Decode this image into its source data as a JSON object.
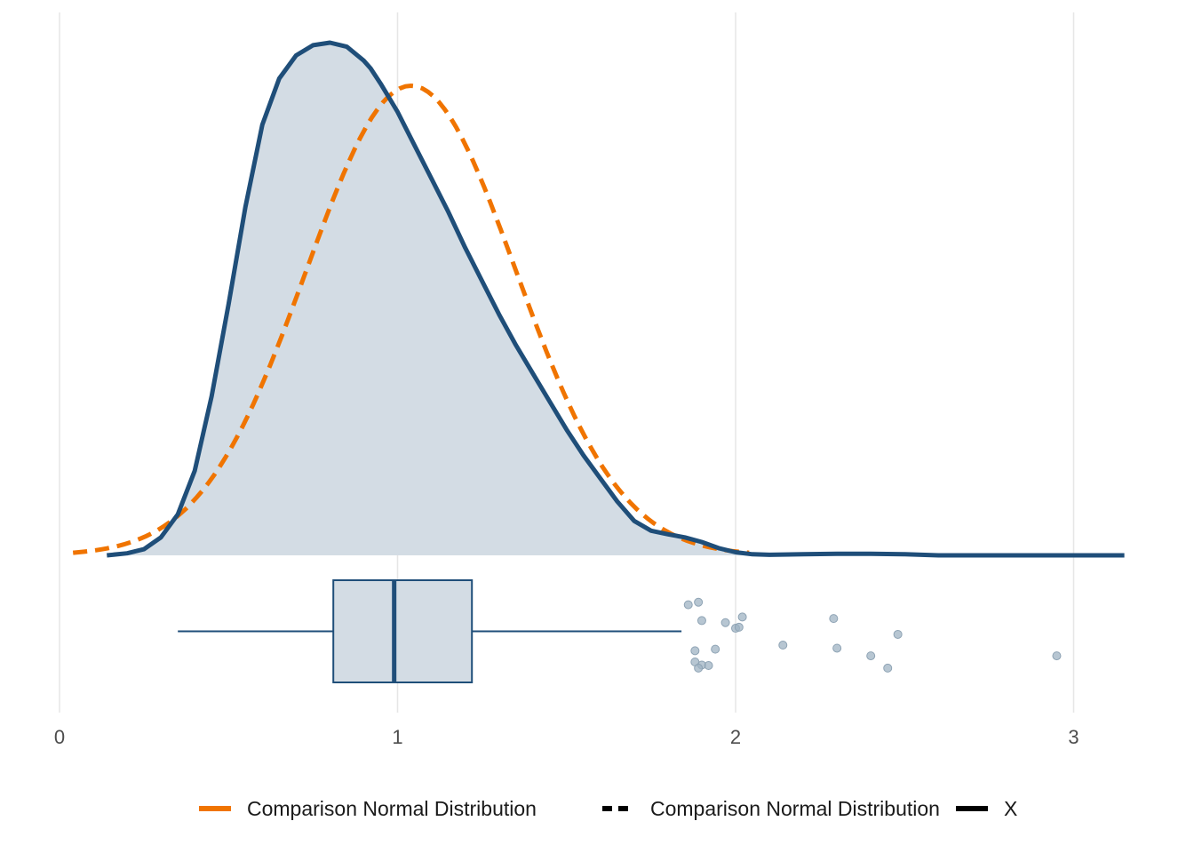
{
  "chart_data": {
    "type": "density",
    "title": "",
    "xlabel": "",
    "ylabel": "",
    "xlim": [
      0,
      3.15
    ],
    "x_ticks": [
      "0",
      "1",
      "2",
      "3"
    ],
    "grid": "vertical",
    "legend_position": "bottom",
    "colors": {
      "density": "#1f4e79",
      "density_fill": "#d3dce4",
      "normal": "#f07400",
      "points": "#9fb3c3",
      "grid": "#e6e6e6"
    },
    "series": [
      {
        "name": "X",
        "kind": "kernel-density",
        "x": [
          0.14,
          0.2,
          0.25,
          0.3,
          0.35,
          0.4,
          0.45,
          0.5,
          0.55,
          0.6,
          0.65,
          0.7,
          0.75,
          0.8,
          0.85,
          0.9,
          0.92,
          0.95,
          1.0,
          1.05,
          1.1,
          1.15,
          1.2,
          1.25,
          1.3,
          1.35,
          1.4,
          1.45,
          1.5,
          1.55,
          1.6,
          1.65,
          1.7,
          1.75,
          1.8,
          1.85,
          1.9,
          1.95,
          2.0,
          2.05,
          2.1,
          2.2,
          2.3,
          2.4,
          2.5,
          2.6,
          2.7,
          2.8,
          2.9,
          3.0,
          3.1,
          3.15
        ],
        "y": [
          0.0,
          0.004,
          0.012,
          0.035,
          0.08,
          0.165,
          0.31,
          0.49,
          0.68,
          0.84,
          0.93,
          0.975,
          0.995,
          1.0,
          0.992,
          0.965,
          0.95,
          0.92,
          0.865,
          0.8,
          0.735,
          0.67,
          0.6,
          0.535,
          0.47,
          0.41,
          0.355,
          0.3,
          0.245,
          0.195,
          0.15,
          0.105,
          0.067,
          0.048,
          0.041,
          0.035,
          0.026,
          0.014,
          0.006,
          0.002,
          0.001,
          0.002,
          0.003,
          0.003,
          0.002,
          0.0,
          0.0,
          0.0,
          0.0,
          0.0,
          0.0,
          0.0
        ]
      },
      {
        "name": "Comparison Normal Distribution",
        "kind": "normal",
        "mean": 1.04,
        "sd": 0.31,
        "peak_relative": 0.916,
        "x_range": [
          0.04,
          2.04
        ]
      }
    ],
    "boxplot": {
      "min": 0.35,
      "q1": 0.81,
      "median": 0.99,
      "q3": 1.22,
      "max": 1.84,
      "outliers": [
        1.86,
        1.89,
        1.9,
        1.97,
        2.02,
        2.0,
        2.01,
        1.88,
        1.94,
        2.14,
        2.29,
        2.3,
        2.48,
        2.4,
        1.88,
        1.9,
        1.92,
        1.89,
        2.45,
        2.95
      ],
      "outlier_offsets": [
        0.52,
        0.57,
        0.21,
        0.17,
        0.28,
        0.06,
        0.08,
        -0.38,
        -0.35,
        -0.27,
        0.25,
        -0.33,
        -0.06,
        -0.48,
        -0.6,
        -0.66,
        -0.67,
        -0.72,
        -0.72,
        -0.48
      ]
    }
  },
  "legend": {
    "items": [
      {
        "label": "Comparison Normal Distribution",
        "style": "solid",
        "color": "#f07400"
      },
      {
        "label": "Comparison Normal Distribution",
        "style": "dashed",
        "color": "#000000"
      },
      {
        "label": "X",
        "style": "solid",
        "color": "#000000"
      }
    ]
  }
}
